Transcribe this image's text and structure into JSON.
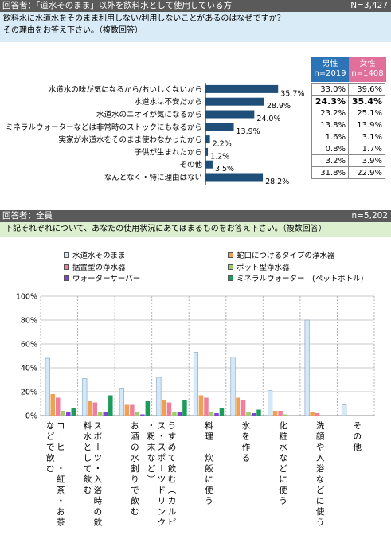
{
  "section1": {
    "header": "回答者：「道水そのまま」以外を飲料水として使用している方",
    "n": "N=3,427",
    "question": [
      "飲料水に水道水をそのまま利用しない/利用しないことがあるのはなぜですか？",
      "その理由をお答え下さい。（複数回答）"
    ],
    "col_male": "男性",
    "col_male_n": "n=2019",
    "col_female": "女性",
    "col_female_n": "n=1408",
    "bar_color": "#1f4e79",
    "male_bg": "#2d74b6",
    "female_bg": "#e06f9a"
  },
  "chart_data": [
    {
      "type": "bar",
      "orientation": "horizontal",
      "categories": [
        "水道水の味が気になるから/おいしくないから",
        "水道水は不安だから",
        "水道水のニオイが気になるから",
        "ミネラルウォーターなどは非常時のストックにもなるから",
        "実家が水道水をそのまま使わなかったから",
        "子供が生まれたから",
        "その他",
        "なんとなく・特に理由はない"
      ],
      "values": [
        35.7,
        28.9,
        24.0,
        13.9,
        2.2,
        1.2,
        3.5,
        28.2
      ],
      "value_labels": [
        "35.7%",
        "28.9%",
        "24.0%",
        "13.9%",
        "2.2%",
        "1.2%",
        "3.5%",
        "28.2%"
      ],
      "male": [
        "33.0%",
        "24.3%",
        "23.2%",
        "13.8%",
        "1.6%",
        "0.8%",
        "3.2%",
        "31.8%"
      ],
      "female": [
        "39.6%",
        "35.4%",
        "25.1%",
        "13.9%",
        "3.1%",
        "1.7%",
        "3.9%",
        "22.9%"
      ],
      "bold_row": 1
    },
    {
      "type": "bar",
      "ylim": [
        0,
        100
      ],
      "yticks": [
        "0%",
        "20%",
        "40%",
        "60%",
        "80%",
        "100%"
      ],
      "grid": true,
      "legend_position": "top",
      "categories": [
        "コーヒー・紅茶・お茶などで飲む",
        "スポーツ・入浴時の飲料水として飲む",
        "お酒の水割りで飲む",
        "うすめて飲む（カルピス・スポーツドリンク・粉末など）",
        "料理　炊飯に使う",
        "氷を作る",
        "化粧水などに使う",
        "洗顔や入浴などに使う",
        "その他"
      ],
      "series": [
        {
          "name": "水道水そのまま",
          "color": "#d5e8f7",
          "values": [
            48,
            31,
            23,
            32,
            53,
            49,
            21,
            80,
            9
          ]
        },
        {
          "name": "蛇口につけるタイプの浄水器",
          "color": "#f0a050",
          "values": [
            18,
            12,
            9,
            13,
            17,
            15,
            4,
            3,
            0
          ]
        },
        {
          "name": "据置型の浄水器",
          "color": "#f07f9b",
          "values": [
            15,
            11,
            9,
            11,
            15,
            13,
            4,
            2,
            0
          ]
        },
        {
          "name": "ポット型浄水器",
          "color": "#9ccf6a",
          "values": [
            4,
            3,
            3,
            3,
            3,
            3,
            1,
            0,
            0
          ]
        },
        {
          "name": "ウォーターサーバー",
          "color": "#8a3ed6",
          "values": [
            3,
            3,
            1,
            3,
            2,
            2,
            0,
            0,
            0
          ]
        },
        {
          "name": "ミネラルウォーター　(ペットボトル)",
          "color": "#1c9c5a",
          "values": [
            6,
            17,
            12,
            13,
            6,
            5,
            0,
            0,
            0
          ]
        }
      ]
    }
  ],
  "section2": {
    "header": "回答者：全員",
    "n": "n=5,202",
    "question": "下記それぞれについて、あなたの使用状況にあてはまるものをお答え下さい。（複数回答）"
  }
}
